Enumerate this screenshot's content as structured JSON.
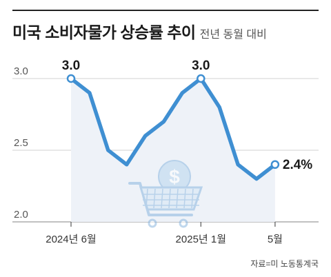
{
  "header": {
    "title": "미국 소비자물가 상승률 추이",
    "subtitle": "전년 동월 대비"
  },
  "chart_data": {
    "type": "line",
    "title": "미국 소비자물가 상승률 추이",
    "subtitle": "전년 동월 대비",
    "xlabel": "",
    "ylabel": "",
    "ylim": [
      2.0,
      3.0
    ],
    "yticks": [
      "3.0",
      "2.5",
      "2.0"
    ],
    "ytick_values": [
      3.0,
      2.5,
      2.0
    ],
    "x_tick_labels": [
      "2024년 6월",
      "2025년 1월",
      "5월"
    ],
    "x_tick_index": [
      0,
      7,
      11
    ],
    "series": [
      {
        "values": [
          3.0,
          2.9,
          2.5,
          2.4,
          2.6,
          2.7,
          2.9,
          3.0,
          2.8,
          2.4,
          2.3,
          2.4
        ]
      }
    ],
    "data_labels": [
      {
        "index": 0,
        "text": "3.0"
      },
      {
        "index": 7,
        "text": "3.0"
      },
      {
        "index": 11,
        "text": "2.4%"
      }
    ],
    "grid": true,
    "line_color": "#3f8fd2",
    "fill_color": "#eef2f8",
    "grid_color": "#d0d0d0"
  },
  "source": "자료=미 노동통계국"
}
